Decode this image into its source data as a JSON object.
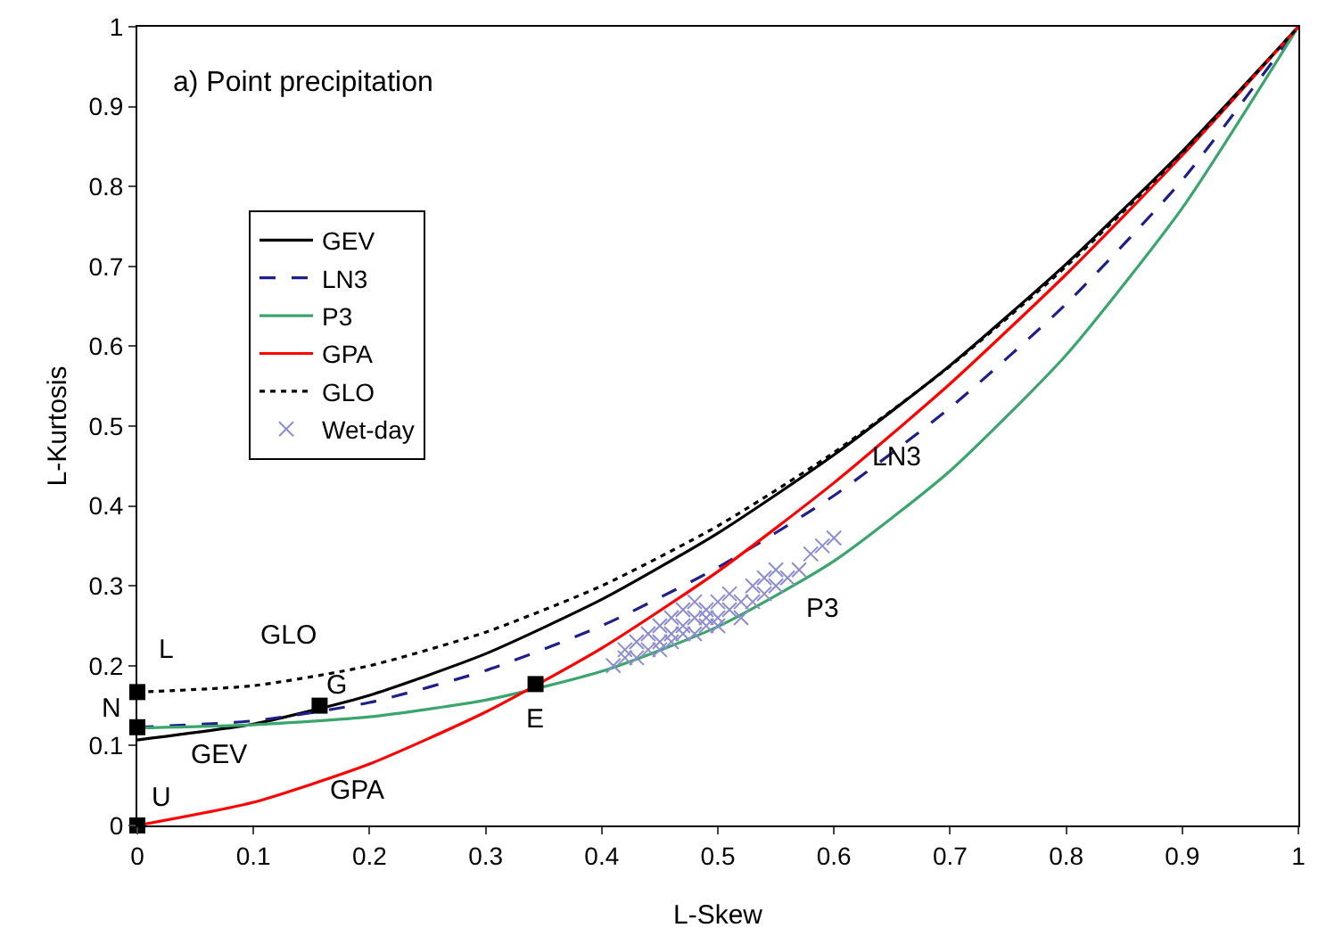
{
  "chart_data": {
    "type": "line",
    "title": "a) Point precipitation",
    "xlabel": "L-Skew",
    "ylabel": "L-Kurtosis",
    "xlim": [
      0,
      1
    ],
    "ylim": [
      0,
      1
    ],
    "xticks": [
      0,
      0.1,
      0.2,
      0.3,
      0.4,
      0.5,
      0.6,
      0.7,
      0.8,
      0.9,
      1
    ],
    "yticks": [
      0,
      0.1,
      0.2,
      0.3,
      0.4,
      0.5,
      0.6,
      0.7,
      0.8,
      0.9,
      1
    ],
    "grid": false,
    "legend": "top left",
    "marker": "none",
    "x": [
      0,
      0.1,
      0.2,
      0.3,
      0.4,
      0.5,
      0.6,
      0.7,
      0.8,
      0.9,
      1
    ],
    "series": [
      {
        "name": "GEV",
        "color": "#000000",
        "line_style": "solid",
        "values": [
          0.107,
          0.127,
          0.163,
          0.215,
          0.283,
          0.366,
          0.464,
          0.576,
          0.703,
          0.844,
          1
        ]
      },
      {
        "name": "LN3",
        "color": "#1f1f8a",
        "line_style": "dashed",
        "values": [
          0.123,
          0.131,
          0.154,
          0.194,
          0.25,
          0.323,
          0.413,
          0.523,
          0.653,
          0.808,
          1
        ]
      },
      {
        "name": "P3",
        "color": "#3aa56c",
        "line_style": "solid",
        "values": [
          0.122,
          0.126,
          0.136,
          0.157,
          0.193,
          0.249,
          0.331,
          0.444,
          0.589,
          0.773,
          1
        ]
      },
      {
        "name": "GPA",
        "color": "#ff0000",
        "line_style": "solid",
        "values": [
          0,
          0.029,
          0.077,
          0.142,
          0.222,
          0.318,
          0.429,
          0.553,
          0.69,
          0.839,
          1
        ]
      },
      {
        "name": "GLO",
        "color": "#000000",
        "line_style": "dotted",
        "values": [
          0.167,
          0.175,
          0.2,
          0.242,
          0.3,
          0.375,
          0.467,
          0.575,
          0.7,
          0.842,
          1
        ]
      },
      {
        "name": "Wet-day",
        "type": "scatter",
        "marker": "cross",
        "color": "#8c8cd2",
        "x": [
          0.41,
          0.42,
          0.42,
          0.43,
          0.43,
          0.44,
          0.44,
          0.45,
          0.45,
          0.45,
          0.46,
          0.46,
          0.46,
          0.47,
          0.47,
          0.47,
          0.48,
          0.48,
          0.48,
          0.49,
          0.49,
          0.49,
          0.5,
          0.5,
          0.5,
          0.51,
          0.51,
          0.52,
          0.52,
          0.53,
          0.53,
          0.54,
          0.54,
          0.55,
          0.55,
          0.56,
          0.57,
          0.58,
          0.59,
          0.6
        ],
        "values": [
          0.2,
          0.21,
          0.22,
          0.21,
          0.23,
          0.22,
          0.24,
          0.23,
          0.25,
          0.22,
          0.24,
          0.26,
          0.23,
          0.25,
          0.27,
          0.24,
          0.26,
          0.24,
          0.28,
          0.25,
          0.27,
          0.26,
          0.26,
          0.28,
          0.25,
          0.27,
          0.29,
          0.28,
          0.26,
          0.3,
          0.28,
          0.31,
          0.29,
          0.3,
          0.32,
          0.31,
          0.32,
          0.34,
          0.35,
          0.36
        ]
      },
      {
        "type": "scatter",
        "marker": "square",
        "color": "#000000",
        "x": [
          0,
          0,
          0,
          0.157,
          0.343
        ],
        "values": [
          0.167,
          0.123,
          0,
          0.15,
          0.177
        ]
      }
    ],
    "annotations": [
      {
        "text": "L",
        "x": 0,
        "y": 0.167
      },
      {
        "text": "N",
        "x": 0,
        "y": 0.123
      },
      {
        "text": "U",
        "x": 0,
        "y": 0
      },
      {
        "text": "G",
        "x": 0.157,
        "y": 0.15
      },
      {
        "text": "E",
        "x": 0.343,
        "y": 0.177
      },
      {
        "text": "GLO",
        "x": 0.13,
        "y": 0.181
      },
      {
        "text": "GEV",
        "x": 0.07,
        "y": 0.12
      },
      {
        "text": "GPA",
        "x": 0.19,
        "y": 0.071
      },
      {
        "text": "LN3",
        "x": 0.655,
        "y": 0.46
      },
      {
        "text": "P3",
        "x": 0.59,
        "y": 0.32
      }
    ]
  }
}
